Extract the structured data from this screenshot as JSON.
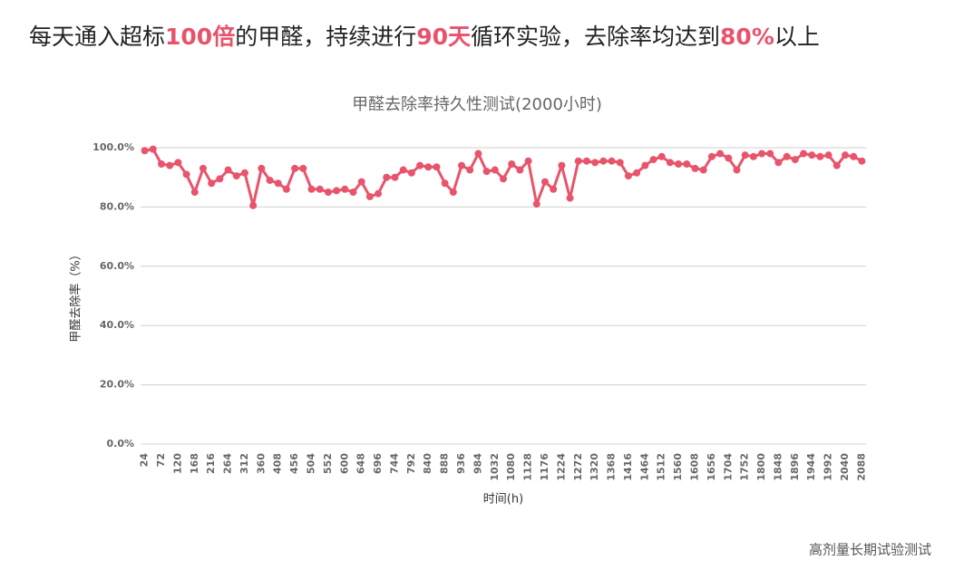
{
  "headline": {
    "segments": [
      {
        "text": "每天通入超标",
        "highlight": false
      },
      {
        "text": "100倍",
        "highlight": true
      },
      {
        "text": "的甲醛，持续进行",
        "highlight": false
      },
      {
        "text": "90天",
        "highlight": true
      },
      {
        "text": "循环实验，去除率均达到",
        "highlight": false
      },
      {
        "text": "80%",
        "highlight": true
      },
      {
        "text": "以上",
        "highlight": false
      }
    ],
    "highlight_color": "#e8536b"
  },
  "caption": "高剂量长期试验测试",
  "chart_data": {
    "type": "line",
    "title": "甲醛去除率持久性测试(2000小时)",
    "x_label": "时间(h)",
    "y_label": "甲醛去除率（%）",
    "categories": [
      "24",
      null,
      "72",
      null,
      "120",
      null,
      "168",
      null,
      "216",
      null,
      "264",
      null,
      "312",
      null,
      "360",
      null,
      "408",
      null,
      "456",
      null,
      "504",
      null,
      "552",
      null,
      "600",
      null,
      "648",
      null,
      "696",
      null,
      "744",
      null,
      "792",
      null,
      "840",
      null,
      "888",
      null,
      "936",
      null,
      "984",
      null,
      "1032",
      null,
      "1080",
      null,
      "1128",
      null,
      "1176",
      null,
      "1224",
      null,
      "1272",
      null,
      "1320",
      null,
      "1368",
      null,
      "1416",
      null,
      "1464",
      null,
      "1512",
      null,
      "1560",
      null,
      "1608",
      null,
      "1656",
      null,
      "1704",
      null,
      "1752",
      null,
      "1800",
      null,
      "1848",
      null,
      "1896",
      null,
      "1944",
      null,
      "1992",
      null,
      "2040",
      null,
      "2088"
    ],
    "values": [
      99,
      99.5,
      94.5,
      94,
      95,
      91,
      85,
      93,
      88,
      89.5,
      92.5,
      90.5,
      91.5,
      80.5,
      93,
      89,
      88,
      86,
      93,
      93,
      86,
      86,
      85,
      85.5,
      86,
      85,
      88.5,
      83.5,
      84.5,
      90,
      90,
      92.5,
      91.5,
      94,
      93.5,
      93.5,
      88,
      85,
      94,
      92.5,
      98,
      92,
      92.5,
      89.5,
      94.5,
      92.5,
      95.5,
      81,
      88.5,
      86,
      94,
      83,
      95.5,
      95.5,
      95,
      95.5,
      95.5,
      95,
      90.5,
      91.5,
      94,
      96,
      97,
      95,
      94.5,
      94.5,
      93,
      92.5,
      97,
      98,
      96.5,
      92.5,
      97.5,
      97,
      98,
      98,
      95,
      97,
      96,
      98,
      97.5,
      97,
      97.5,
      94,
      97.5,
      97,
      95.5
    ],
    "color": "#e8546b",
    "ylim": [
      0,
      100
    ],
    "yticks": [
      {
        "value": 0,
        "label": "0.0%"
      },
      {
        "value": 20,
        "label": "20.0%"
      },
      {
        "value": 40,
        "label": "40.0%"
      },
      {
        "value": 60,
        "label": "60.0%"
      },
      {
        "value": 80,
        "label": "80.0%"
      },
      {
        "value": 100,
        "label": "100.0%"
      }
    ],
    "grid": true
  }
}
